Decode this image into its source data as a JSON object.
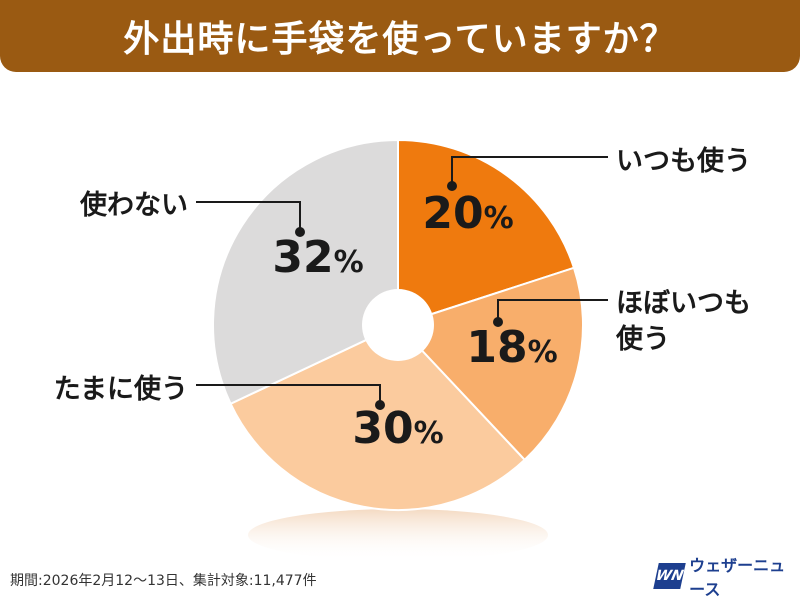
{
  "header": {
    "title": "外出時に手袋を使っていますか？"
  },
  "chart_data": {
    "type": "pie",
    "title": "外出時に手袋を使っていますか？",
    "unit": "%",
    "slices": [
      {
        "label": "いつも使う",
        "value": 20,
        "color": "#ef7a0e"
      },
      {
        "label": "ほぼいつも\n使う",
        "value": 18,
        "color": "#f8ae6b"
      },
      {
        "label": "たまに使う",
        "value": 30,
        "color": "#fbcb9e"
      },
      {
        "label": "使わない",
        "value": 32,
        "color": "#dcdbdb"
      }
    ],
    "legend": "none"
  },
  "footer": {
    "note": "期間:2026年2月12～13日、集計対象:11,477件",
    "brand_logo": "WN",
    "brand_name": "ウェザーニュース"
  }
}
